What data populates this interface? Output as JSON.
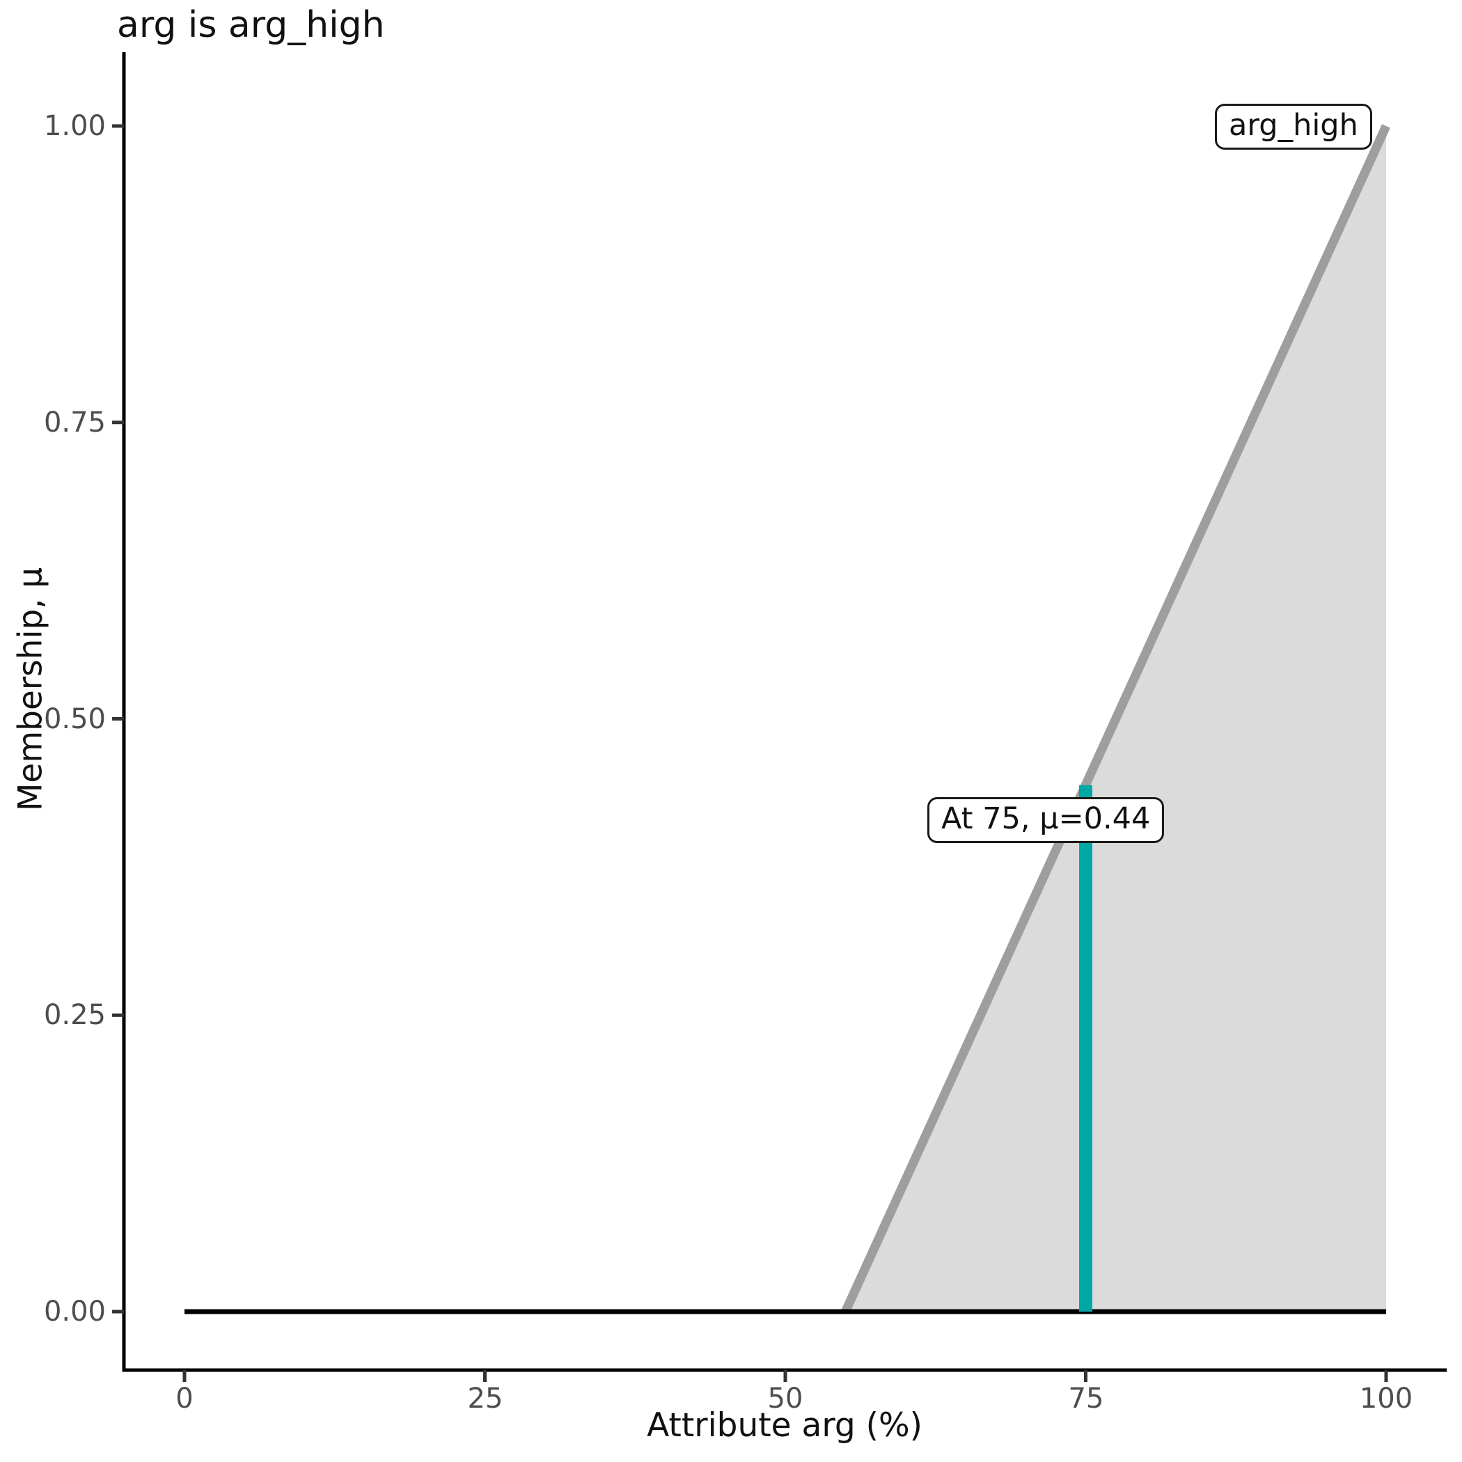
{
  "chart_data": {
    "type": "area",
    "title": "arg is arg_high",
    "xlabel": "Attribute arg (%)",
    "ylabel": "Membership, μ",
    "xlim": [
      0,
      100
    ],
    "ylim": [
      0,
      1
    ],
    "grid": false,
    "legend": "none",
    "xticks": [
      0,
      25,
      50,
      75,
      100
    ],
    "xtick_labels": [
      "0",
      "25",
      "50",
      "75",
      "100"
    ],
    "yticks": [
      1.0,
      0.75,
      0.5,
      0.25,
      0.0
    ],
    "ytick_labels": [
      "1.00",
      "0.75",
      "0.50",
      "0.25",
      "0.00"
    ],
    "membership_function": {
      "name": "arg_high",
      "baseline_points": [
        [
          0,
          0
        ],
        [
          100,
          0
        ]
      ],
      "line_points": [
        [
          55,
          0
        ],
        [
          100,
          1
        ]
      ],
      "fill_polygon": [
        [
          55,
          0
        ],
        [
          100,
          1
        ],
        [
          100,
          0
        ]
      ],
      "line_color": "#9e9e9e",
      "fill_color": "#dbdbdb",
      "baseline_color": "#000000"
    },
    "evaluation": {
      "x": 75,
      "mu": 0.444,
      "line_color": "#00a8a5"
    },
    "annotations": [
      {
        "text": "arg_high"
      },
      {
        "text": "At 75, μ=0.44"
      }
    ],
    "colors": {
      "axis": "#000000",
      "tick": "#333333",
      "tick_label": "#4d4d4d",
      "text": "#111111",
      "annotation_border": "#1a1a1a",
      "annotation_bg": "#ffffff"
    }
  }
}
